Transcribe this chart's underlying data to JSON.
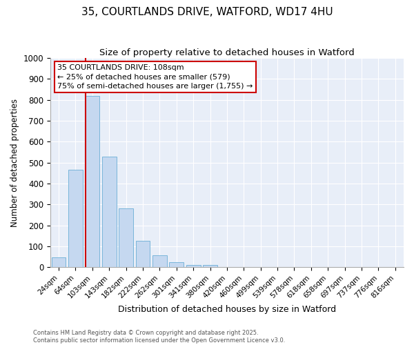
{
  "title": "35, COURTLANDS DRIVE, WATFORD, WD17 4HU",
  "subtitle": "Size of property relative to detached houses in Watford",
  "xlabel": "Distribution of detached houses by size in Watford",
  "ylabel": "Number of detached properties",
  "bins": [
    "24sqm",
    "64sqm",
    "103sqm",
    "143sqm",
    "182sqm",
    "222sqm",
    "262sqm",
    "301sqm",
    "341sqm",
    "380sqm",
    "420sqm",
    "460sqm",
    "499sqm",
    "539sqm",
    "578sqm",
    "618sqm",
    "658sqm",
    "697sqm",
    "737sqm",
    "776sqm",
    "816sqm"
  ],
  "values": [
    46,
    465,
    820,
    530,
    280,
    125,
    55,
    22,
    10,
    10,
    0,
    0,
    0,
    0,
    0,
    0,
    0,
    0,
    0,
    0,
    0
  ],
  "bar_color": "#c5d8f0",
  "bar_edge_color": "#6aaed6",
  "marker_bin_index": 2,
  "marker_color": "#cc0000",
  "ylim": [
    0,
    1000
  ],
  "yticks": [
    0,
    100,
    200,
    300,
    400,
    500,
    600,
    700,
    800,
    900,
    1000
  ],
  "annotation_line1": "35 COURTLANDS DRIVE: 108sqm",
  "annotation_line2": "← 25% of detached houses are smaller (579)",
  "annotation_line3": "75% of semi-detached houses are larger (1,755) →",
  "annotation_box_color": "#cc0000",
  "footer_line1": "Contains HM Land Registry data © Crown copyright and database right 2025.",
  "footer_line2": "Contains public sector information licensed under the Open Government Licence v3.0.",
  "bg_color": "#e8eef8",
  "grid_color": "#ffffff",
  "title_fontsize": 11,
  "subtitle_fontsize": 9.5,
  "tick_fontsize": 7.5,
  "ylabel_fontsize": 8.5,
  "xlabel_fontsize": 9,
  "annotation_fontsize": 8,
  "footer_fontsize": 6
}
